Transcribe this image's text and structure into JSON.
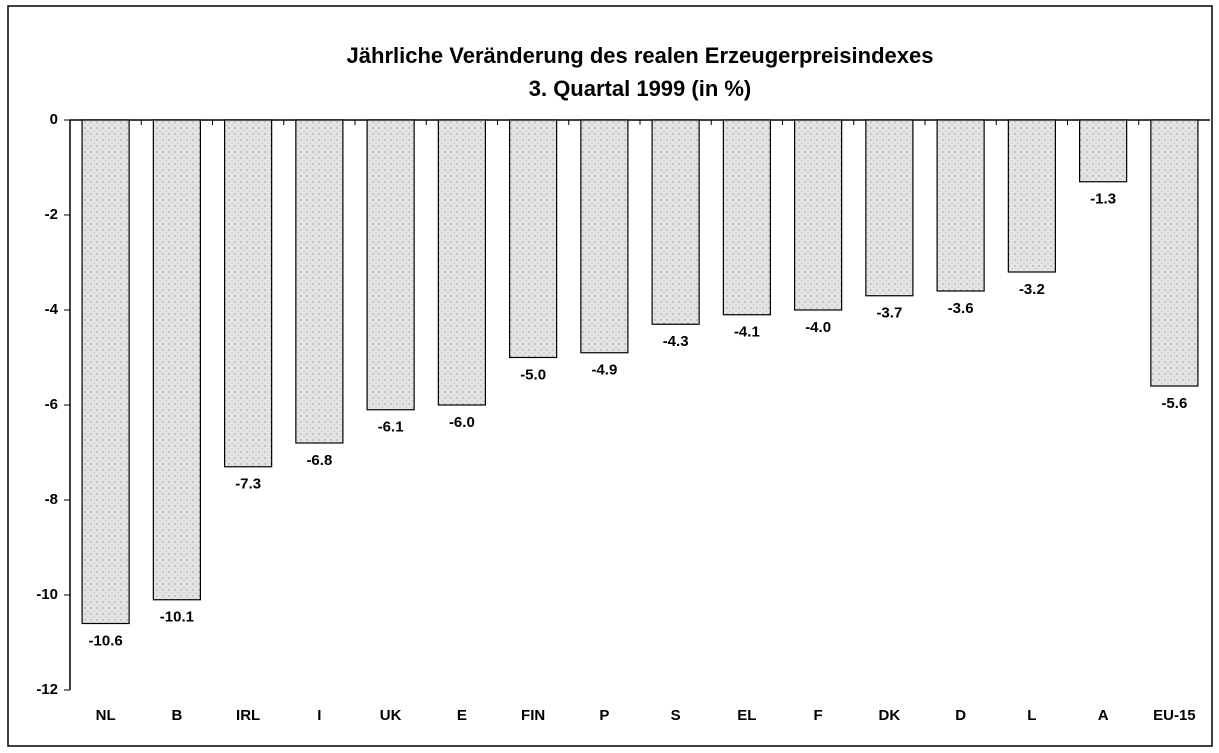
{
  "chart_data": {
    "type": "bar",
    "title": "Jährliche Veränderung des realen Erzeugerpreisindexes",
    "subtitle": "3. Quartal 1999 (in %)",
    "categories": [
      "NL",
      "B",
      "IRL",
      "I",
      "UK",
      "E",
      "FIN",
      "P",
      "S",
      "EL",
      "F",
      "DK",
      "D",
      "L",
      "A",
      "EU-15"
    ],
    "values": [
      -10.6,
      -10.1,
      -7.3,
      -6.8,
      -6.1,
      -6.0,
      -5.0,
      -4.9,
      -4.3,
      -4.1,
      -4.0,
      -3.7,
      -3.6,
      -3.2,
      -1.3,
      -5.6
    ],
    "value_labels": [
      "-10.6",
      "-10.1",
      "-7.3",
      "-6.8",
      "-6.1",
      "-6.0",
      "-5.0",
      "-4.9",
      "-4.3",
      "-4.1",
      "-4.0",
      "-3.7",
      "-3.6",
      "-3.2",
      "-1.3",
      "-5.6"
    ],
    "color": "#d9d9d9",
    "ylim": [
      -12,
      0
    ],
    "yticks": [
      0,
      -2,
      -4,
      -6,
      -8,
      -10,
      -12
    ],
    "grid": false
  }
}
